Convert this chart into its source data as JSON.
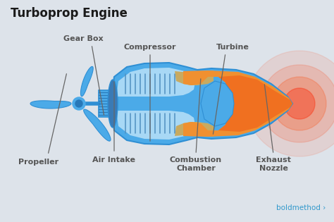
{
  "title": "Turboprop Engine",
  "bg_color": "#dde3ea",
  "engine_blue": "#4baae8",
  "engine_blue_dark": "#2f8fd4",
  "engine_blue_light": "#8ecff5",
  "engine_blue_inner": "#a8d8f5",
  "orange_hot": "#f07020",
  "orange_mid": "#f09030",
  "gold_color": "#c8aa60",
  "exhaust_red": "#dd2200",
  "text_color": "#555555",
  "title_color": "#1a1a1a",
  "boldmethod_color": "#3399cc",
  "labels": {
    "gear_box": "Gear Box",
    "compressor": "Compressor",
    "turbine": "Turbine",
    "propeller": "Propeller",
    "air_intake": "Air Intake",
    "combustion": "Combustion\nChamber",
    "exhaust": "Exhaust\nNozzle"
  }
}
